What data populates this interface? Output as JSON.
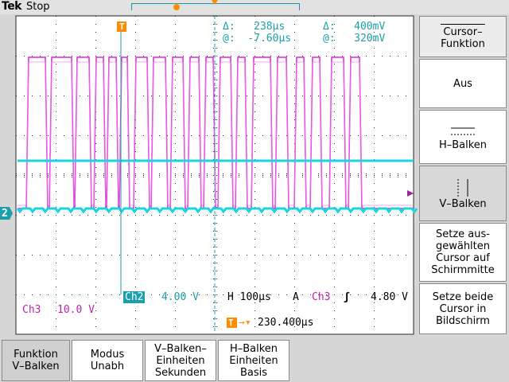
{
  "header": {
    "brand": "Tek",
    "state": "Stop"
  },
  "readouts": {
    "delta_time": "Δ:   238µs",
    "delta_volt": "Δ:   400mV",
    "at_time": "@:  -7.60µs",
    "at_volt": "@:   320mV",
    "ch2_label": "Ch2",
    "ch2_scale": "4.00 V",
    "ch3_label": "Ch3",
    "ch3_scale": "10.0 V",
    "horizontal": "H 100µs",
    "trig_mode": "A",
    "trig_source": "Ch3",
    "trig_level": "4.80 V",
    "trig_position": "230.400µs",
    "channel_marker": "2",
    "trigger_marker": "T"
  },
  "side_menu": {
    "title": "Cursor–\nFunktion",
    "items": [
      {
        "label": "Aus"
      },
      {
        "label": "H–Balken"
      },
      {
        "label": "V–Balken"
      },
      {
        "label": "Setze aus-\ngewählten\nCursor auf\nSchirmmitte"
      },
      {
        "label": "Setze beide\nCursor in\nBildschirm"
      }
    ]
  },
  "bottom_menu": [
    {
      "label": "Funktion\nV–Balken"
    },
    {
      "label": "Modus\nUnabh"
    },
    {
      "label": "V–Balken–\nEinheiten\nSekunden"
    },
    {
      "label": "H–Balken\nEinheiten\nBasis"
    }
  ],
  "colors": {
    "ch2": "#1ad4e0",
    "ch3": "#e020d8",
    "grid": "#2a2a2a",
    "cursor": "#1aa0aa",
    "trigger": "#ff8c00"
  }
}
